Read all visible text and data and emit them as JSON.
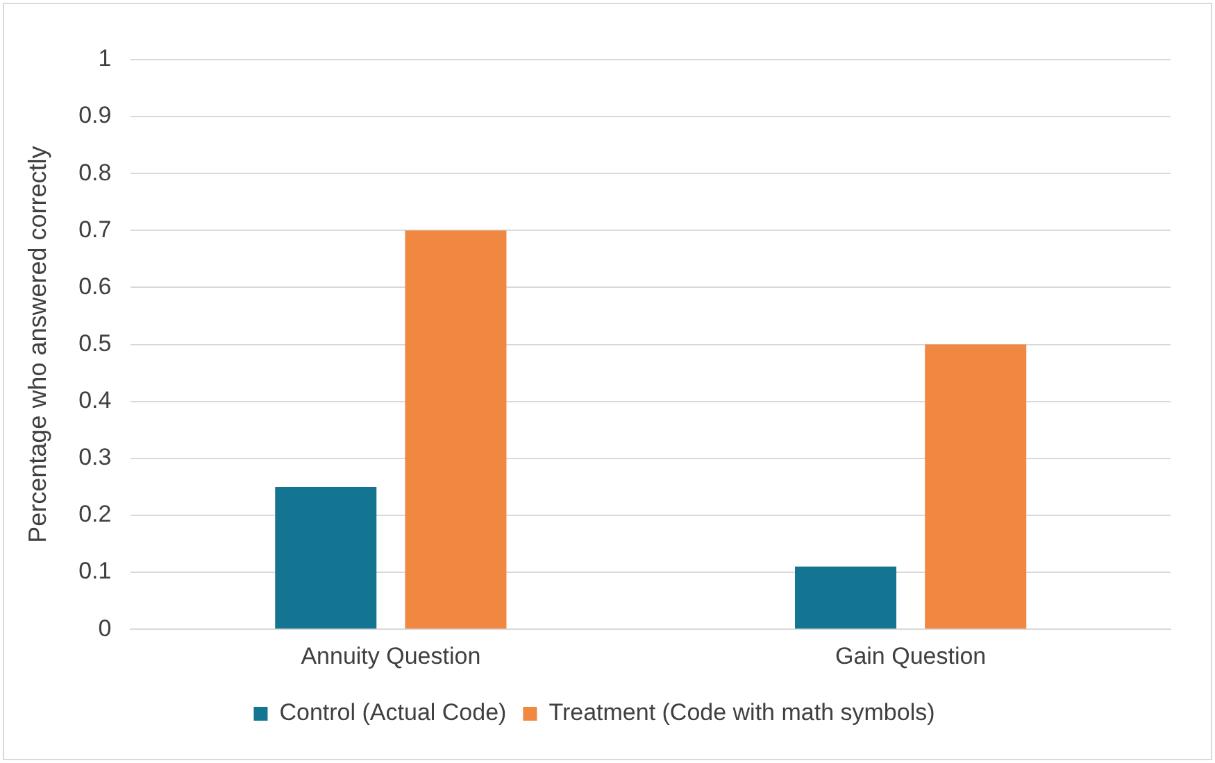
{
  "chart_data": {
    "type": "bar",
    "ylabel": "Percentage who answered correctly",
    "categories": [
      "Annuity Question",
      "Gain Question"
    ],
    "series": [
      {
        "name": "Control (Actual Code)",
        "color": "#147593",
        "values": [
          0.25,
          0.11
        ]
      },
      {
        "name": "Treatment (Code with math symbols)",
        "color": "#f08841",
        "values": [
          0.7,
          0.5
        ]
      }
    ],
    "ylim": [
      0,
      1
    ],
    "yticks": [
      0,
      0.1,
      0.2,
      0.3,
      0.4,
      0.5,
      0.6,
      0.7,
      0.8,
      0.9,
      1
    ],
    "grid": "y",
    "legend": "bottom"
  }
}
